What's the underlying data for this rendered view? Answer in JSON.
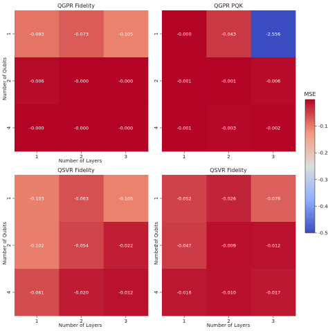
{
  "chart_data": [
    {
      "type": "heatmap",
      "title": "QGPR Fidelity",
      "xlabel": "Number of Layers",
      "ylabel": "Number of Qubits",
      "x_ticks": [
        "1",
        "2",
        "3"
      ],
      "y_ticks": [
        "1",
        "2",
        "4"
      ],
      "values": [
        [
          -0.093,
          -0.073,
          -0.105
        ],
        [
          -0.006,
          -0.0,
          -0.0
        ],
        [
          -0.0,
          -0.0,
          -0.0
        ]
      ],
      "labels": [
        [
          "-0.093",
          "-0.073",
          "-0.105"
        ],
        [
          "-0.006",
          "-0.000",
          "-0.000"
        ],
        [
          "-0.000",
          "-0.000",
          "-0.000"
        ]
      ]
    },
    {
      "type": "heatmap",
      "title": "QGPR PQK",
      "xlabel": "",
      "ylabel": "",
      "x_ticks": [
        "1",
        "2",
        "3"
      ],
      "y_ticks": [
        "1",
        "2",
        "4"
      ],
      "values": [
        [
          -0.0,
          -0.043,
          -2.556
        ],
        [
          -0.001,
          -0.001,
          -0.006
        ],
        [
          -0.001,
          -0.003,
          -0.002
        ]
      ],
      "labels": [
        [
          "-0.000",
          "-0.043",
          "-2.556"
        ],
        [
          "-0.001",
          "-0.001",
          "-0.006"
        ],
        [
          "-0.001",
          "-0.003",
          "-0.002"
        ]
      ]
    },
    {
      "type": "heatmap",
      "title": "QSVR Fidelity",
      "xlabel": "Number of Layers",
      "ylabel": "Number of Qubits",
      "x_ticks": [
        "1",
        "2",
        "3"
      ],
      "y_ticks": [
        "1",
        "2",
        "4"
      ],
      "values": [
        [
          -0.103,
          -0.063,
          -0.105
        ],
        [
          -0.102,
          -0.054,
          -0.022
        ],
        [
          -0.061,
          -0.02,
          -0.012
        ]
      ],
      "labels": [
        [
          "-0.103",
          "-0.063",
          "-0.105"
        ],
        [
          "-0.102",
          "-0.054",
          "-0.022"
        ],
        [
          "-0.061",
          "-0.020",
          "-0.012"
        ]
      ]
    },
    {
      "type": "heatmap",
      "title": "QSVR Fidelity",
      "xlabel": "Number of Layers",
      "ylabel": "Number of Qubits",
      "x_ticks": [
        "1",
        "2",
        "3"
      ],
      "y_ticks": [
        "1",
        "2",
        "4"
      ],
      "values": [
        [
          -0.052,
          -0.026,
          -0.076
        ],
        [
          -0.047,
          -0.009,
          -0.012
        ],
        [
          -0.016,
          -0.01,
          -0.017
        ]
      ],
      "labels": [
        [
          "-0.052",
          "-0.026",
          "-0.076"
        ],
        [
          "-0.047",
          "-0.009",
          "-0.012"
        ],
        [
          "-0.016",
          "-0.010",
          "-0.017"
        ]
      ]
    }
  ],
  "colorbar": {
    "label": "MSE",
    "colormap": "coolwarm",
    "vmin": -0.5,
    "vmax": 0,
    "ticks": [
      "-0.1",
      "-0.2",
      "-0.3",
      "-0.4",
      "-0.5"
    ],
    "tick_values": [
      -0.1,
      -0.2,
      -0.3,
      -0.4,
      -0.5
    ],
    "colors": {
      "low": "#3b4cc0",
      "mid": "#dddddd",
      "high": "#b40426"
    }
  }
}
